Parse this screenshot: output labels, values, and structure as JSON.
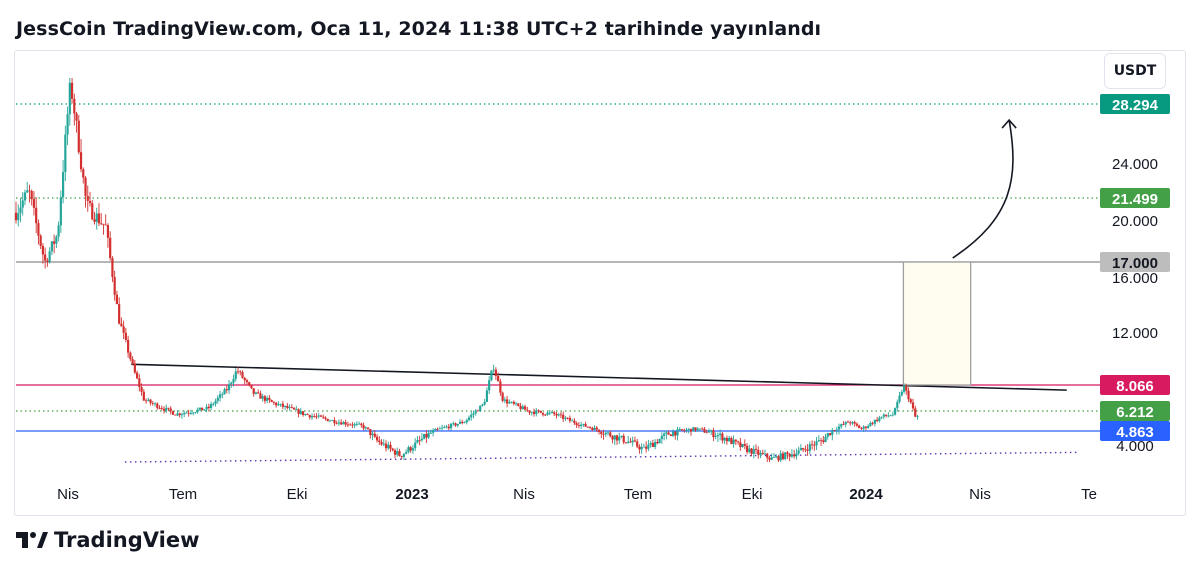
{
  "header": {
    "title": "JessCoin TradingView.com, Oca 11, 2024 11:38 UTC+2 tarihinde yayınlandı"
  },
  "currency": "USDT",
  "footer": {
    "brand": "TradingView"
  },
  "colors": {
    "up": "#26a69a",
    "down": "#d32f2f",
    "resistance": "#d81b60",
    "support": "#2962ff",
    "green_label": "#43a047",
    "target_label": "#089981",
    "gray_label": "#bdbdbd",
    "target_box": "#fffdf0"
  },
  "chart_data": {
    "type": "candlestick",
    "title": "",
    "price_axis_ticks": [
      "24.000",
      "20.000",
      "16.000",
      "12.000",
      "4.000"
    ],
    "time_axis_ticks": [
      {
        "label": "Nis",
        "bold": false
      },
      {
        "label": "Tem",
        "bold": false
      },
      {
        "label": "Eki",
        "bold": false
      },
      {
        "label": "2023",
        "bold": true
      },
      {
        "label": "Nis",
        "bold": false
      },
      {
        "label": "Tem",
        "bold": false
      },
      {
        "label": "Eki",
        "bold": false
      },
      {
        "label": "2024",
        "bold": true
      },
      {
        "label": "Nis",
        "bold": false
      },
      {
        "label": "Te",
        "bold": false
      }
    ],
    "levels": [
      {
        "label": "28.294",
        "price": 28.294,
        "style": "dotted",
        "color": "target"
      },
      {
        "label": "21.499",
        "price": 21.499,
        "style": "dotted",
        "color": "green"
      },
      {
        "label": "17.000",
        "price": 17.0,
        "style": "solid",
        "color": "gray"
      },
      {
        "label": "8.066",
        "price": 8.066,
        "style": "solid",
        "color": "resistance"
      },
      {
        "label": "6.212",
        "price": 6.212,
        "style": "dotted",
        "color": "green"
      },
      {
        "label": "4.863",
        "price": 4.863,
        "style": "solid",
        "color": "support"
      }
    ],
    "price_path": [
      [
        0.0,
        20.5
      ],
      [
        0.02,
        22.0
      ],
      [
        0.045,
        17.0
      ],
      [
        0.065,
        19.0
      ],
      [
        0.085,
        30.0
      ],
      [
        0.11,
        21.0
      ],
      [
        0.14,
        19.5
      ],
      [
        0.16,
        13.0
      ],
      [
        0.185,
        9.0
      ],
      [
        0.2,
        7.0
      ],
      [
        0.25,
        6.0
      ],
      [
        0.3,
        6.4
      ],
      [
        0.33,
        7.8
      ],
      [
        0.345,
        9.2
      ],
      [
        0.37,
        7.5
      ],
      [
        0.4,
        6.8
      ],
      [
        0.45,
        6.0
      ],
      [
        0.5,
        5.5
      ],
      [
        0.54,
        5.2
      ],
      [
        0.56,
        4.6
      ],
      [
        0.6,
        4.1
      ],
      [
        0.64,
        4.7
      ],
      [
        0.67,
        5.1
      ],
      [
        0.7,
        5.5
      ],
      [
        0.73,
        6.7
      ],
      [
        0.745,
        9.5
      ],
      [
        0.76,
        7.0
      ],
      [
        0.8,
        6.2
      ],
      [
        0.84,
        6.0
      ],
      [
        0.88,
        5.3
      ],
      [
        0.92,
        4.8
      ],
      [
        0.96,
        4.5
      ],
      [
        0.98,
        4.3
      ],
      [
        1.02,
        4.8
      ],
      [
        1.06,
        5.0
      ],
      [
        1.1,
        4.7
      ],
      [
        1.14,
        4.3
      ],
      [
        1.18,
        4.0
      ],
      [
        1.22,
        4.2
      ],
      [
        1.26,
        4.6
      ],
      [
        1.3,
        5.5
      ],
      [
        1.32,
        5.0
      ],
      [
        1.35,
        5.8
      ],
      [
        1.37,
        6.0
      ],
      [
        1.385,
        8.0
      ],
      [
        1.395,
        7.0
      ],
      [
        1.405,
        5.6
      ],
      [
        1.41,
        6.2
      ]
    ],
    "time_domain": [
      0.0,
      1.67
    ],
    "annotations": [
      {
        "type": "trendline",
        "from": [
          0.18,
          9.6
        ],
        "to": [
          1.64,
          7.7
        ],
        "color": "black"
      },
      {
        "type": "trendline",
        "from": [
          0.17,
          3.2
        ],
        "to": [
          1.66,
          4.2
        ],
        "color": "purple",
        "style": "dotted"
      },
      {
        "type": "target-box",
        "from": [
          1.385,
          8.066
        ],
        "to": [
          1.49,
          17.0
        ]
      },
      {
        "type": "arrow",
        "from": [
          1.49,
          17.0
        ],
        "to": [
          1.55,
          28.0
        ]
      }
    ]
  }
}
